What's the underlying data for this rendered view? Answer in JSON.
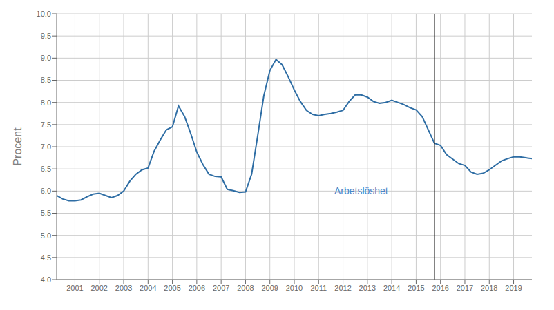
{
  "chart_data": {
    "type": "line",
    "ylabel": "Procent",
    "grid": true,
    "xlim": [
      2000.25,
      2019.75
    ],
    "ylim": [
      4.0,
      10.0
    ],
    "xticks": [
      2001,
      2002,
      2003,
      2004,
      2005,
      2006,
      2007,
      2008,
      2009,
      2010,
      2011,
      2012,
      2013,
      2014,
      2015,
      2016,
      2017,
      2018,
      2019
    ],
    "yticks": [
      {
        "value": 4.0,
        "label": "4.0"
      },
      {
        "value": 4.5,
        "label": "4.5"
      },
      {
        "value": 5.0,
        "label": "5.0"
      },
      {
        "value": 5.5,
        "label": "5.5"
      },
      {
        "value": 6.0,
        "label": "6.0"
      },
      {
        "value": 6.5,
        "label": "6.5"
      },
      {
        "value": 7.0,
        "label": "7.0"
      },
      {
        "value": 7.5,
        "label": "7.5"
      },
      {
        "value": 8.0,
        "label": "8.0"
      },
      {
        "value": 8.5,
        "label": "8.5"
      },
      {
        "value": 9.0,
        "label": "9.0"
      },
      {
        "value": 9.5,
        "label": "9.5"
      },
      {
        "value": 10.0,
        "label": "10.0"
      }
    ],
    "x": [
      2000.25,
      2000.5,
      2000.75,
      2001.0,
      2001.25,
      2001.5,
      2001.75,
      2002.0,
      2002.25,
      2002.5,
      2002.75,
      2003.0,
      2003.25,
      2003.5,
      2003.75,
      2004.0,
      2004.25,
      2004.5,
      2004.75,
      2005.0,
      2005.25,
      2005.5,
      2005.75,
      2006.0,
      2006.25,
      2006.5,
      2006.75,
      2007.0,
      2007.25,
      2007.5,
      2007.75,
      2008.0,
      2008.25,
      2008.5,
      2008.75,
      2009.0,
      2009.25,
      2009.5,
      2009.75,
      2010.0,
      2010.25,
      2010.5,
      2010.75,
      2011.0,
      2011.25,
      2011.5,
      2011.75,
      2012.0,
      2012.25,
      2012.5,
      2012.75,
      2013.0,
      2013.25,
      2013.5,
      2013.75,
      2014.0,
      2014.25,
      2014.5,
      2014.75,
      2015.0,
      2015.25,
      2015.5,
      2015.75,
      2016.0,
      2016.25,
      2016.5,
      2016.75,
      2017.0,
      2017.25,
      2017.5,
      2017.75,
      2018.0,
      2018.25,
      2018.5,
      2018.75,
      2019.0,
      2019.25,
      2019.5,
      2019.75
    ],
    "values": [
      5.9,
      5.82,
      5.78,
      5.78,
      5.8,
      5.87,
      5.93,
      5.95,
      5.9,
      5.85,
      5.9,
      6.0,
      6.22,
      6.38,
      6.48,
      6.52,
      6.9,
      7.15,
      7.38,
      7.45,
      7.92,
      7.68,
      7.3,
      6.88,
      6.6,
      6.38,
      6.33,
      6.32,
      6.04,
      6.01,
      5.97,
      5.98,
      6.38,
      7.25,
      8.15,
      8.72,
      8.97,
      8.85,
      8.58,
      8.28,
      8.02,
      7.82,
      7.73,
      7.7,
      7.73,
      7.75,
      7.78,
      7.82,
      8.02,
      8.17,
      8.17,
      8.12,
      8.02,
      7.98,
      8.0,
      8.05,
      8.0,
      7.95,
      7.88,
      7.83,
      7.68,
      7.38,
      7.08,
      7.03,
      6.82,
      6.72,
      6.62,
      6.58,
      6.43,
      6.38,
      6.4,
      6.48,
      6.58,
      6.68,
      6.73,
      6.77,
      6.77,
      6.75,
      6.73
    ],
    "color": "#2e6da4",
    "vlines": [
      {
        "x": 2015.75,
        "color": "#111111"
      }
    ],
    "annotations": [
      {
        "text": "Arbetslöshet",
        "x": 2011.5,
        "y": 6.0,
        "color": "#4a86c8"
      }
    ]
  }
}
